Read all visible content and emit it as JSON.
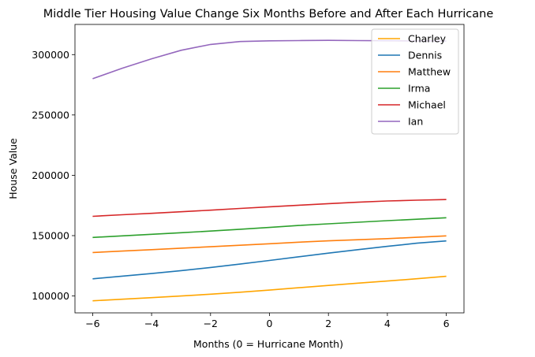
{
  "chart_data": {
    "type": "line",
    "title": "Middle Tier Housing Value Change Six Months Before and After Each Hurricane",
    "xlabel": "Months (0 = Hurricane Month)",
    "ylabel": "House Value",
    "xlim": [
      -6.6,
      6.6
    ],
    "ylim": [
      86000,
      325000
    ],
    "x_ticks": [
      -6,
      -4,
      -2,
      0,
      2,
      4,
      6
    ],
    "x_tick_labels": [
      "−6",
      "−4",
      "−2",
      "0",
      "2",
      "4",
      "6"
    ],
    "y_ticks": [
      100000,
      150000,
      200000,
      250000,
      300000
    ],
    "y_tick_labels": [
      "100000",
      "150000",
      "200000",
      "250000",
      "300000"
    ],
    "grid": false,
    "legend_position": "top-right",
    "x": [
      -6,
      -5,
      -4,
      -3,
      -2,
      -1,
      0,
      1,
      2,
      3,
      4,
      5,
      6
    ],
    "series": [
      {
        "name": "Charley",
        "color": "#ffa500",
        "values": [
          96000,
          97300,
          98600,
          100000,
          101500,
          103100,
          104900,
          106800,
          108700,
          110600,
          112400,
          114300,
          116300
        ]
      },
      {
        "name": "Dennis",
        "color": "#1f77b4",
        "values": [
          114200,
          116400,
          118600,
          121000,
          123600,
          126400,
          129400,
          132500,
          135500,
          138400,
          141100,
          143700,
          145600
        ]
      },
      {
        "name": "Matthew",
        "color": "#ff7f0e",
        "values": [
          136000,
          137200,
          138400,
          139600,
          140800,
          142000,
          143300,
          144600,
          145700,
          146600,
          147500,
          148600,
          149800
        ]
      },
      {
        "name": "Irma",
        "color": "#2ca02c",
        "values": [
          148500,
          149800,
          151100,
          152400,
          153800,
          155300,
          156800,
          158400,
          159800,
          161100,
          162400,
          163600,
          164800
        ]
      },
      {
        "name": "Michael",
        "color": "#d62728",
        "values": [
          166000,
          167300,
          168500,
          169800,
          171100,
          172500,
          173900,
          175200,
          176500,
          177700,
          178700,
          179400,
          179900
        ]
      },
      {
        "name": "Ian",
        "color": "#9467bd",
        "values": [
          280000,
          288700,
          296500,
          303600,
          308400,
          310800,
          311400,
          311600,
          311800,
          311600,
          311500,
          311300,
          311200
        ]
      }
    ]
  }
}
